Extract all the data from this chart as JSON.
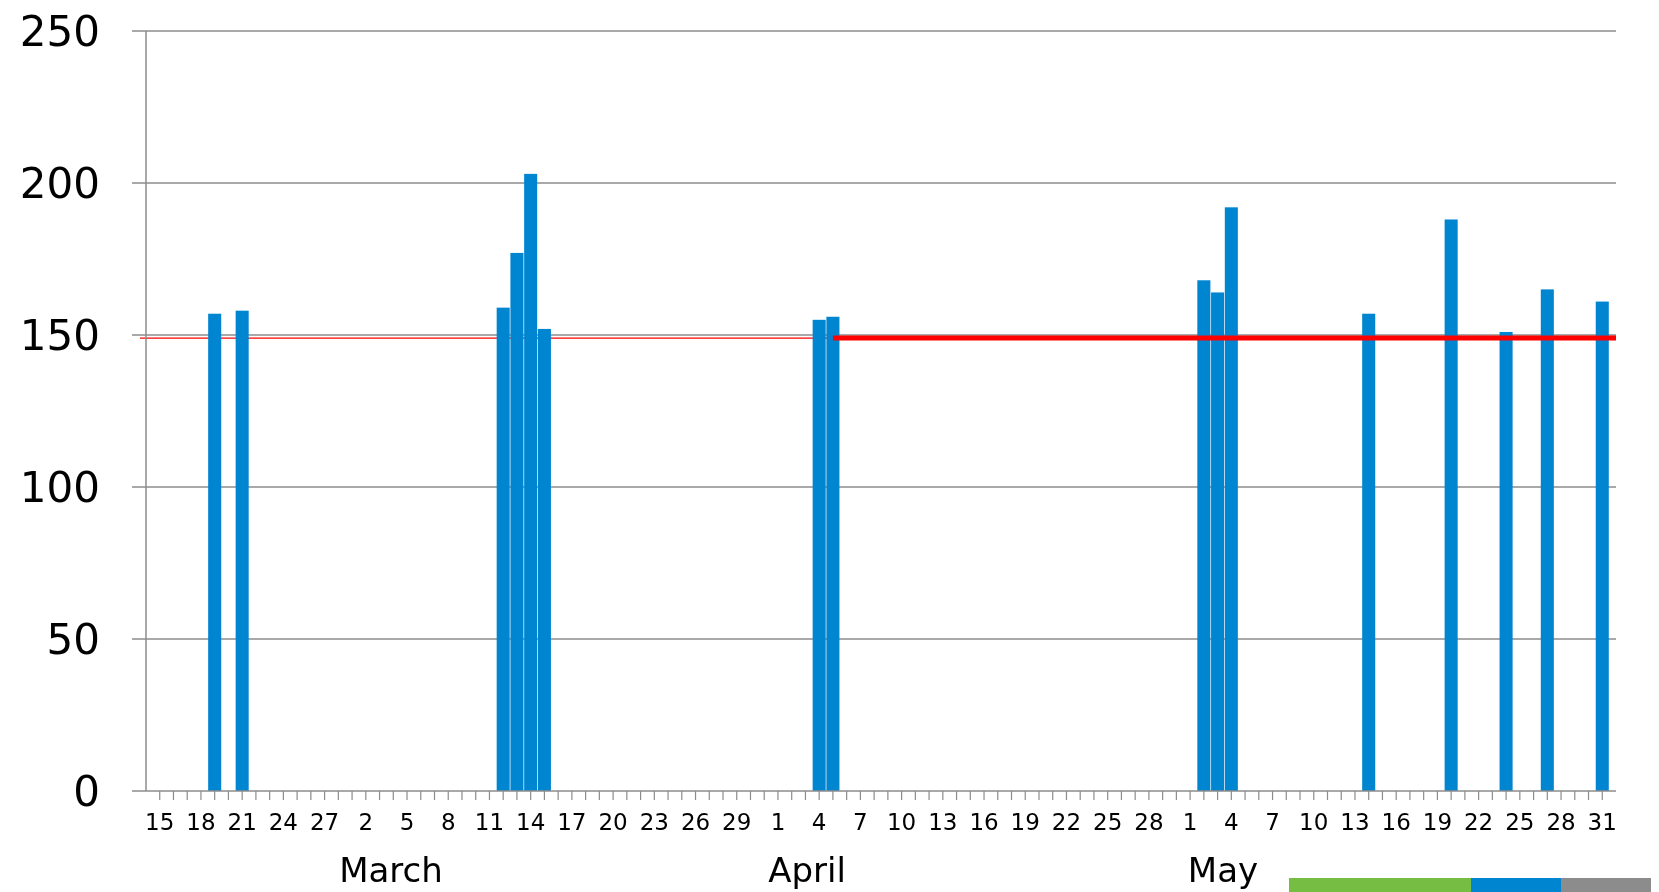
{
  "chart_data": {
    "type": "bar",
    "x": [
      "--02-19",
      "--02-21",
      "--03-12",
      "--03-13",
      "--03-14",
      "--03-15",
      "--04-04",
      "--04-05",
      "--05-02",
      "--05-03",
      "--05-04",
      "--05-14",
      "--05-20",
      "--05-24",
      "--05-27",
      "--05-31"
    ],
    "series": [
      {
        "color": "#0085d1",
        "values": [
          157,
          158,
          159,
          177,
          203,
          152,
          155,
          156,
          168,
          164,
          192,
          157,
          188,
          151,
          165,
          161
        ]
      },
      {
        "type": "line",
        "color": "#ff0000",
        "x": [
          "--04-05",
          "--06-01"
        ],
        "values": [
          149,
          149
        ]
      }
    ],
    "ref_lines": [
      {
        "axis": "y",
        "value": 149,
        "color": "#ff0000"
      }
    ],
    "ylim": [
      0,
      250
    ],
    "yticks": [
      0,
      50,
      100,
      150,
      200,
      250
    ],
    "xlim": [
      "--02-14",
      "--06-01"
    ],
    "xticks": [
      {
        "value": "--02-15",
        "label": "15"
      },
      {
        "value": "--02-16",
        "label": null
      },
      {
        "value": "--02-17",
        "label": null
      },
      {
        "value": "--02-18",
        "label": "18"
      },
      {
        "value": "--02-19",
        "label": null
      },
      {
        "value": "--02-20",
        "label": null
      },
      {
        "value": "--02-21",
        "label": "21"
      },
      {
        "value": "--02-22",
        "label": null
      },
      {
        "value": "--02-23",
        "label": null
      },
      {
        "value": "--02-24",
        "label": "24"
      },
      {
        "value": "--02-25",
        "label": null
      },
      {
        "value": "--02-26",
        "label": null
      },
      {
        "value": "--02-27",
        "label": "27"
      },
      {
        "value": "--02-28",
        "label": null
      },
      {
        "value": "--03-01",
        "label": null
      },
      {
        "value": "--03-02",
        "label": "2"
      },
      {
        "value": "--03-03",
        "label": null
      },
      {
        "value": "--03-04",
        "label": null
      },
      {
        "value": "--03-05",
        "label": "5"
      },
      {
        "value": "--03-06",
        "label": null
      },
      {
        "value": "--03-07",
        "label": null
      },
      {
        "value": "--03-08",
        "label": "8"
      },
      {
        "value": "--03-09",
        "label": null
      },
      {
        "value": "--03-10",
        "label": null
      },
      {
        "value": "--03-11",
        "label": "11"
      },
      {
        "value": "--03-12",
        "label": null
      },
      {
        "value": "--03-13",
        "label": null
      },
      {
        "value": "--03-14",
        "label": "14"
      },
      {
        "value": "--03-15",
        "label": null
      },
      {
        "value": "--03-16",
        "label": null
      },
      {
        "value": "--03-17",
        "label": "17"
      },
      {
        "value": "--03-18",
        "label": null
      },
      {
        "value": "--03-19",
        "label": null
      },
      {
        "value": "--03-20",
        "label": "20"
      },
      {
        "value": "--03-21",
        "label": null
      },
      {
        "value": "--03-22",
        "label": null
      },
      {
        "value": "--03-23",
        "label": "23"
      },
      {
        "value": "--03-24",
        "label": null
      },
      {
        "value": "--03-25",
        "label": null
      },
      {
        "value": "--03-26",
        "label": "26"
      },
      {
        "value": "--03-27",
        "label": null
      },
      {
        "value": "--03-28",
        "label": null
      },
      {
        "value": "--03-29",
        "label": "29"
      },
      {
        "value": "--03-30",
        "label": null
      },
      {
        "value": "--03-31",
        "label": null
      },
      {
        "value": "--04-01",
        "label": "1"
      },
      {
        "value": "--04-02",
        "label": null
      },
      {
        "value": "--04-03",
        "label": null
      },
      {
        "value": "--04-04",
        "label": "4"
      },
      {
        "value": "--04-05",
        "label": null
      },
      {
        "value": "--04-06",
        "label": null
      },
      {
        "value": "--04-07",
        "label": "7"
      },
      {
        "value": "--04-08",
        "label": null
      },
      {
        "value": "--04-09",
        "label": null
      },
      {
        "value": "--04-10",
        "label": "10"
      },
      {
        "value": "--04-11",
        "label": null
      },
      {
        "value": "--04-12",
        "label": null
      },
      {
        "value": "--04-13",
        "label": "13"
      },
      {
        "value": "--04-14",
        "label": null
      },
      {
        "value": "--04-15",
        "label": null
      },
      {
        "value": "--04-16",
        "label": "16"
      },
      {
        "value": "--04-17",
        "label": null
      },
      {
        "value": "--04-18",
        "label": null
      },
      {
        "value": "--04-19",
        "label": "19"
      },
      {
        "value": "--04-20",
        "label": null
      },
      {
        "value": "--04-21",
        "label": null
      },
      {
        "value": "--04-22",
        "label": "22"
      },
      {
        "value": "--04-23",
        "label": null
      },
      {
        "value": "--04-24",
        "label": null
      },
      {
        "value": "--04-25",
        "label": "25"
      },
      {
        "value": "--04-26",
        "label": null
      },
      {
        "value": "--04-27",
        "label": null
      },
      {
        "value": "--04-28",
        "label": "28"
      },
      {
        "value": "--04-29",
        "label": null
      },
      {
        "value": "--04-30",
        "label": null
      },
      {
        "value": "--05-01",
        "label": "1"
      },
      {
        "value": "--05-02",
        "label": null
      },
      {
        "value": "--05-03",
        "label": null
      },
      {
        "value": "--05-04",
        "label": "4"
      },
      {
        "value": "--05-05",
        "label": null
      },
      {
        "value": "--05-06",
        "label": null
      },
      {
        "value": "--05-07",
        "label": "7"
      },
      {
        "value": "--05-08",
        "label": null
      },
      {
        "value": "--05-09",
        "label": null
      },
      {
        "value": "--05-10",
        "label": "10"
      },
      {
        "value": "--05-11",
        "label": null
      },
      {
        "value": "--05-12",
        "label": null
      },
      {
        "value": "--05-13",
        "label": "13"
      },
      {
        "value": "--05-14",
        "label": null
      },
      {
        "value": "--05-15",
        "label": null
      },
      {
        "value": "--05-16",
        "label": "16"
      },
      {
        "value": "--05-17",
        "label": null
      },
      {
        "value": "--05-18",
        "label": null
      },
      {
        "value": "--05-19",
        "label": "19"
      },
      {
        "value": "--05-20",
        "label": null
      },
      {
        "value": "--05-21",
        "label": null
      },
      {
        "value": "--05-22",
        "label": "22"
      },
      {
        "value": "--05-23",
        "label": null
      },
      {
        "value": "--05-24",
        "label": null
      },
      {
        "value": "--05-25",
        "label": "25"
      },
      {
        "value": "--05-26",
        "label": null
      },
      {
        "value": "--05-27",
        "label": null
      },
      {
        "value": "--05-28",
        "label": "28"
      },
      {
        "value": "--05-29",
        "label": null
      },
      {
        "value": "--05-30",
        "label": null
      },
      {
        "value": "--05-31",
        "label": "31"
      }
    ],
    "annotations": [
      "March",
      "April",
      "May"
    ],
    "grid": "y"
  }
}
